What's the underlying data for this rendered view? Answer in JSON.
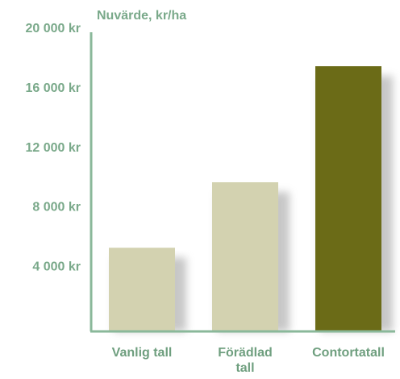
{
  "chart_data": {
    "type": "bar",
    "y_label": "Nuvärde, kr/ha",
    "categories": [
      "Vanlig tall",
      "Förädlad tall",
      "Contortatall"
    ],
    "values": [
      5300,
      9700,
      17500
    ],
    "colors": [
      "#d3d2b0",
      "#d3d2b0",
      "#6b6b17"
    ],
    "ylim": [
      0,
      20000
    ],
    "yticks": [
      {
        "value": 4000,
        "label": "4 000 kr"
      },
      {
        "value": 8000,
        "label": "8 000 kr"
      },
      {
        "value": 12000,
        "label": "12 000 kr"
      },
      {
        "value": 16000,
        "label": "16 000 kr"
      },
      {
        "value": 20000,
        "label": "20 000 kr"
      }
    ],
    "grid": false
  }
}
